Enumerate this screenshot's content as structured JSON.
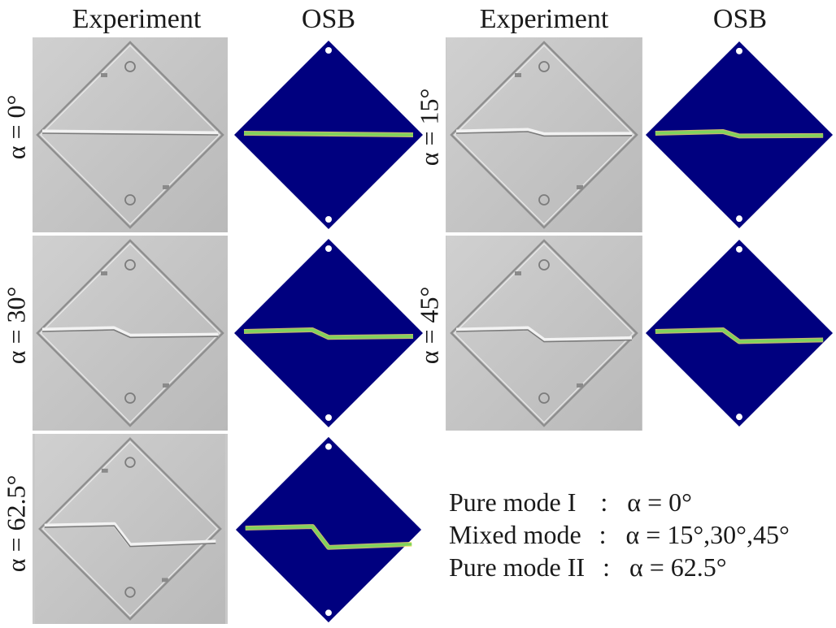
{
  "headers": {
    "left_experiment": "Experiment",
    "left_osb": "OSB",
    "right_experiment": "Experiment",
    "right_osb": "OSB"
  },
  "cases": [
    {
      "id": "a0",
      "angle_label": "α = 0°",
      "crack_deflection_deg": 0
    },
    {
      "id": "a15",
      "angle_label": "α = 15°",
      "crack_deflection_deg": 15
    },
    {
      "id": "a30",
      "angle_label": "α = 30°",
      "crack_deflection_deg": 30
    },
    {
      "id": "a45",
      "angle_label": "α = 45°",
      "crack_deflection_deg": 45
    },
    {
      "id": "a62",
      "angle_label": "α = 62.5°",
      "crack_deflection_deg": 62.5
    }
  ],
  "legend": [
    {
      "name": "Pure mode I",
      "sep": ":",
      "value": "α = 0°"
    },
    {
      "name": "Mixed mode",
      "sep": ":",
      "value": "α = 15°,30°,45°"
    },
    {
      "name": "Pure mode II",
      "sep": ":",
      "value": "α = 62.5°"
    }
  ],
  "colors": {
    "osb_background": "#00007f",
    "osb_crack": "#7fd35c",
    "specimen_gray": "#c6c6c6"
  }
}
